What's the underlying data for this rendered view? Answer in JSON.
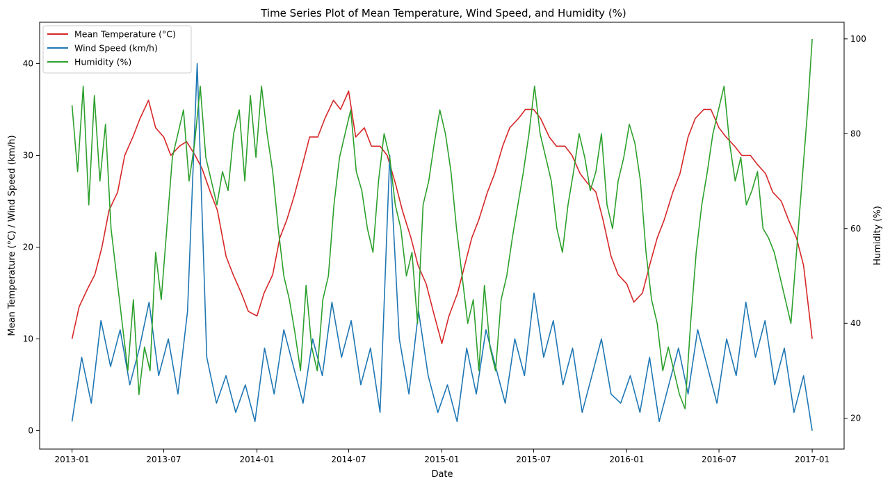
{
  "chart_data": {
    "type": "line",
    "title": "Time Series Plot of Mean Temperature, Wind Speed, and Humidity (%)",
    "xlabel": "Date",
    "ylabel_left": "Mean Temperature (°C) / Wind Speed (km/h)",
    "ylabel_right": "Humidity (%)",
    "x_range": [
      "2012-10-29",
      "2017-03-05"
    ],
    "ylim_left": [
      -2,
      44.5
    ],
    "ylim_right": [
      13.5,
      103.5
    ],
    "x_ticks": [
      {
        "date": "2013-01-01",
        "label": "2013-01"
      },
      {
        "date": "2013-07-01",
        "label": "2013-07"
      },
      {
        "date": "2014-01-01",
        "label": "2014-01"
      },
      {
        "date": "2014-07-01",
        "label": "2014-07"
      },
      {
        "date": "2015-01-01",
        "label": "2015-01"
      },
      {
        "date": "2015-07-01",
        "label": "2015-07"
      },
      {
        "date": "2016-01-01",
        "label": "2016-01"
      },
      {
        "date": "2016-07-01",
        "label": "2016-07"
      },
      {
        "date": "2017-01-01",
        "label": "2017-01"
      }
    ],
    "y_ticks_left": [
      0,
      10,
      20,
      30,
      40
    ],
    "y_ticks_right": [
      20,
      40,
      60,
      80,
      100
    ],
    "grid": false,
    "legend_position": "top-left",
    "series": [
      {
        "name": "Mean Temperature (°C)",
        "axis": "left",
        "color": "#d62728",
        "x": [
          "2013-01-01",
          "2013-01-15",
          "2013-02-01",
          "2013-02-15",
          "2013-03-01",
          "2013-03-15",
          "2013-04-01",
          "2013-04-15",
          "2013-05-01",
          "2013-05-15",
          "2013-06-01",
          "2013-06-15",
          "2013-07-01",
          "2013-07-15",
          "2013-08-01",
          "2013-08-15",
          "2013-09-01",
          "2013-09-15",
          "2013-10-01",
          "2013-10-15",
          "2013-11-01",
          "2013-11-15",
          "2013-12-01",
          "2013-12-15",
          "2014-01-01",
          "2014-01-15",
          "2014-02-01",
          "2014-02-15",
          "2014-03-01",
          "2014-03-15",
          "2014-04-01",
          "2014-04-15",
          "2014-05-01",
          "2014-05-15",
          "2014-06-01",
          "2014-06-15",
          "2014-07-01",
          "2014-07-15",
          "2014-08-01",
          "2014-08-15",
          "2014-09-01",
          "2014-09-15",
          "2014-10-01",
          "2014-10-15",
          "2014-11-01",
          "2014-11-15",
          "2014-12-01",
          "2014-12-15",
          "2015-01-01",
          "2015-01-15",
          "2015-02-01",
          "2015-02-15",
          "2015-03-01",
          "2015-03-15",
          "2015-04-01",
          "2015-04-15",
          "2015-05-01",
          "2015-05-15",
          "2015-06-01",
          "2015-06-15",
          "2015-07-01",
          "2015-07-15",
          "2015-08-01",
          "2015-08-15",
          "2015-09-01",
          "2015-09-15",
          "2015-10-01",
          "2015-10-15",
          "2015-11-01",
          "2015-11-15",
          "2015-12-01",
          "2015-12-15",
          "2016-01-01",
          "2016-01-15",
          "2016-02-01",
          "2016-02-15",
          "2016-03-01",
          "2016-03-15",
          "2016-04-01",
          "2016-04-15",
          "2016-05-01",
          "2016-05-15",
          "2016-06-01",
          "2016-06-15",
          "2016-07-01",
          "2016-07-15",
          "2016-08-01",
          "2016-08-15",
          "2016-09-01",
          "2016-09-15",
          "2016-10-01",
          "2016-10-15",
          "2016-11-01",
          "2016-11-15",
          "2016-12-01",
          "2016-12-15",
          "2017-01-01"
        ],
        "values": [
          10,
          13.5,
          15.5,
          17,
          20,
          24,
          26,
          30,
          32,
          34,
          36,
          33,
          32,
          30,
          31,
          31.5,
          30,
          28.5,
          26,
          24,
          19,
          17,
          15,
          13,
          12.5,
          15,
          17,
          21,
          23,
          25.5,
          29,
          32,
          32,
          34,
          36,
          35,
          37,
          32,
          33,
          31,
          31,
          30,
          27,
          24,
          21,
          18,
          16,
          13,
          9.5,
          12.5,
          15,
          18,
          21,
          23,
          26,
          28,
          31,
          33,
          34,
          35,
          35,
          34,
          32,
          31,
          31,
          30,
          28,
          27,
          26,
          23,
          19,
          17,
          16,
          14,
          15,
          18,
          21,
          23,
          26,
          28,
          32,
          34,
          35,
          35,
          33,
          32,
          31,
          30,
          30,
          29,
          28,
          26,
          25,
          23,
          21,
          18,
          10
        ]
      },
      {
        "name": "Wind Speed (km/h)",
        "axis": "left",
        "color": "#1f77b4",
        "x": [
          "2013-01-01",
          "2013-01-20",
          "2013-02-08",
          "2013-02-27",
          "2013-03-18",
          "2013-04-06",
          "2013-04-25",
          "2013-05-14",
          "2013-06-02",
          "2013-06-21",
          "2013-07-10",
          "2013-07-29",
          "2013-08-17",
          "2013-09-05",
          "2013-09-24",
          "2013-10-13",
          "2013-11-01",
          "2013-11-20",
          "2013-12-09",
          "2013-12-28",
          "2014-01-16",
          "2014-02-04",
          "2014-02-23",
          "2014-03-14",
          "2014-04-02",
          "2014-04-21",
          "2014-05-10",
          "2014-05-29",
          "2014-06-17",
          "2014-07-06",
          "2014-07-25",
          "2014-08-13",
          "2014-09-01",
          "2014-09-20",
          "2014-10-09",
          "2014-10-28",
          "2014-11-16",
          "2014-12-05",
          "2014-12-24",
          "2015-01-12",
          "2015-01-31",
          "2015-02-19",
          "2015-03-10",
          "2015-03-29",
          "2015-04-17",
          "2015-05-06",
          "2015-05-25",
          "2015-06-13",
          "2015-07-02",
          "2015-07-21",
          "2015-08-09",
          "2015-08-28",
          "2015-09-16",
          "2015-10-05",
          "2015-10-24",
          "2015-11-12",
          "2015-12-01",
          "2015-12-20",
          "2016-01-08",
          "2016-01-27",
          "2016-02-15",
          "2016-03-05",
          "2016-03-24",
          "2016-04-12",
          "2016-05-01",
          "2016-05-20",
          "2016-06-08",
          "2016-06-27",
          "2016-07-16",
          "2016-08-04",
          "2016-08-23",
          "2016-09-11",
          "2016-09-30",
          "2016-10-19",
          "2016-11-07",
          "2016-11-26",
          "2016-12-15",
          "2017-01-01"
        ],
        "values": [
          1,
          8,
          3,
          12,
          7,
          11,
          5,
          9,
          14,
          6,
          10,
          4,
          13,
          40,
          8,
          3,
          6,
          2,
          5,
          1,
          9,
          4,
          11,
          7,
          3,
          10,
          6,
          14,
          8,
          12,
          5,
          9,
          2,
          30,
          10,
          4,
          13,
          6,
          2,
          5,
          1,
          9,
          4,
          11,
          7,
          3,
          10,
          6,
          15,
          8,
          12,
          5,
          9,
          2,
          6,
          10,
          4,
          3,
          6,
          2,
          8,
          1,
          5,
          9,
          4,
          11,
          7,
          3,
          10,
          6,
          14,
          8,
          12,
          5,
          9,
          2,
          6,
          0
        ]
      },
      {
        "name": "Humidity (%)",
        "axis": "right",
        "color": "#2ca02c",
        "x": [
          "2013-01-01",
          "2013-01-12",
          "2013-01-23",
          "2013-02-03",
          "2013-02-14",
          "2013-02-25",
          "2013-03-08",
          "2013-03-19",
          "2013-03-30",
          "2013-04-10",
          "2013-04-21",
          "2013-05-02",
          "2013-05-13",
          "2013-05-24",
          "2013-06-04",
          "2013-06-15",
          "2013-06-26",
          "2013-07-07",
          "2013-07-18",
          "2013-07-29",
          "2013-08-09",
          "2013-08-20",
          "2013-08-31",
          "2013-09-11",
          "2013-09-22",
          "2013-10-03",
          "2013-10-14",
          "2013-10-25",
          "2013-11-05",
          "2013-11-16",
          "2013-11-27",
          "2013-12-08",
          "2013-12-19",
          "2013-12-30",
          "2014-01-10",
          "2014-01-21",
          "2014-02-01",
          "2014-02-12",
          "2014-02-23",
          "2014-03-06",
          "2014-03-17",
          "2014-03-28",
          "2014-04-08",
          "2014-04-19",
          "2014-04-30",
          "2014-05-11",
          "2014-05-22",
          "2014-06-02",
          "2014-06-13",
          "2014-06-24",
          "2014-07-05",
          "2014-07-16",
          "2014-07-27",
          "2014-08-07",
          "2014-08-18",
          "2014-08-29",
          "2014-09-09",
          "2014-09-20",
          "2014-10-01",
          "2014-10-12",
          "2014-10-23",
          "2014-11-03",
          "2014-11-14",
          "2014-11-25",
          "2014-12-06",
          "2014-12-17",
          "2014-12-28",
          "2015-01-08",
          "2015-01-19",
          "2015-01-30",
          "2015-02-10",
          "2015-02-21",
          "2015-03-04",
          "2015-03-15",
          "2015-03-26",
          "2015-04-06",
          "2015-04-17",
          "2015-04-28",
          "2015-05-09",
          "2015-05-20",
          "2015-05-31",
          "2015-06-11",
          "2015-06-22",
          "2015-07-03",
          "2015-07-14",
          "2015-07-25",
          "2015-08-05",
          "2015-08-16",
          "2015-08-27",
          "2015-09-07",
          "2015-09-18",
          "2015-09-29",
          "2015-10-10",
          "2015-10-21",
          "2015-11-01",
          "2015-11-12",
          "2015-11-23",
          "2015-12-04",
          "2015-12-15",
          "2015-12-26",
          "2016-01-06",
          "2016-01-17",
          "2016-01-28",
          "2016-02-08",
          "2016-02-19",
          "2016-03-01",
          "2016-03-12",
          "2016-03-23",
          "2016-04-03",
          "2016-04-14",
          "2016-04-25",
          "2016-05-06",
          "2016-05-17",
          "2016-05-28",
          "2016-06-08",
          "2016-06-19",
          "2016-06-30",
          "2016-07-11",
          "2016-07-22",
          "2016-08-02",
          "2016-08-13",
          "2016-08-24",
          "2016-09-04",
          "2016-09-15",
          "2016-09-26",
          "2016-10-07",
          "2016-10-18",
          "2016-10-29",
          "2016-11-09",
          "2016-11-20",
          "2016-12-01",
          "2016-12-12",
          "2016-12-23",
          "2017-01-01"
        ],
        "values": [
          86,
          72,
          90,
          65,
          88,
          70,
          82,
          60,
          50,
          40,
          30,
          45,
          25,
          35,
          30,
          55,
          45,
          60,
          75,
          80,
          85,
          70,
          78,
          90,
          75,
          70,
          65,
          72,
          68,
          80,
          85,
          70,
          88,
          75,
          90,
          80,
          72,
          60,
          50,
          45,
          38,
          30,
          48,
          35,
          30,
          45,
          50,
          65,
          75,
          80,
          85,
          72,
          68,
          60,
          55,
          70,
          80,
          75,
          65,
          60,
          50,
          55,
          40,
          65,
          70,
          78,
          85,
          80,
          72,
          60,
          50,
          40,
          45,
          30,
          48,
          35,
          30,
          45,
          50,
          58,
          65,
          72,
          80,
          90,
          80,
          75,
          70,
          60,
          55,
          65,
          72,
          80,
          75,
          68,
          72,
          80,
          65,
          60,
          70,
          75,
          82,
          78,
          70,
          55,
          45,
          40,
          30,
          35,
          30,
          25,
          22,
          40,
          55,
          65,
          72,
          80,
          85,
          90,
          78,
          70,
          75,
          65,
          68,
          72,
          60,
          58,
          55,
          50,
          45,
          40,
          55,
          70,
          85,
          100
        ]
      }
    ]
  }
}
